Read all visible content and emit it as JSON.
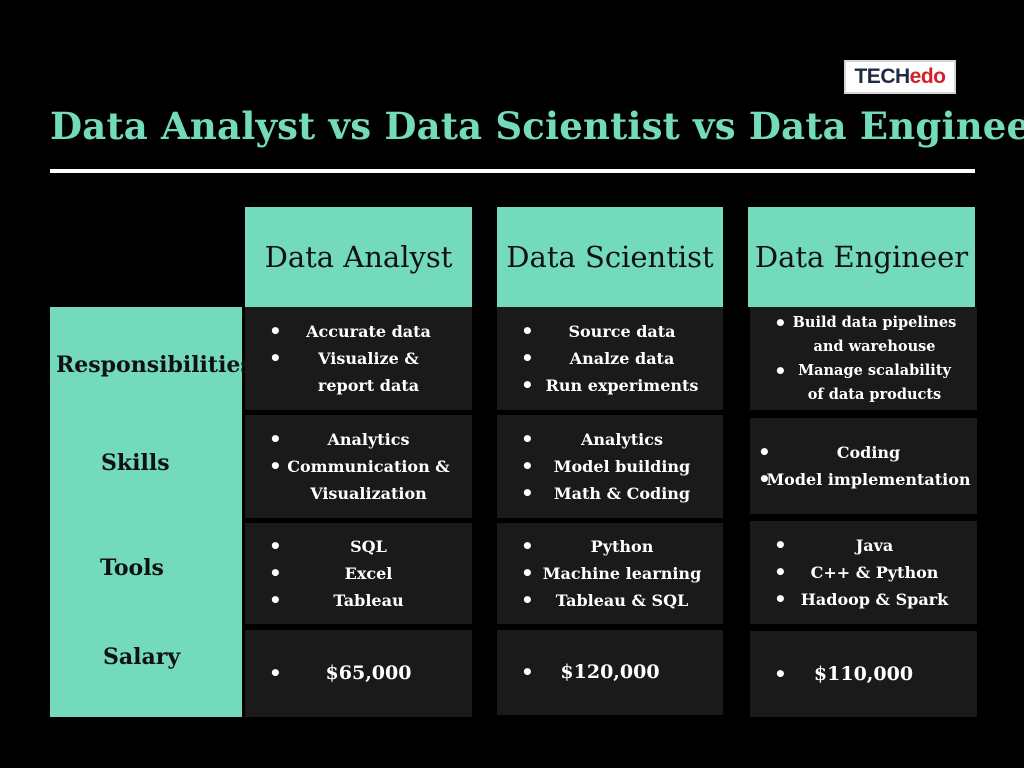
{
  "logo": {
    "part1": "TECH",
    "part2": "edo"
  },
  "title": "Data Analyst vs Data Scientist vs Data Engineer",
  "columns": [
    "Data Analyst",
    "Data Scientist",
    "Data Engineer"
  ],
  "rows": [
    "Responsibilities",
    "Skills",
    "Tools",
    "Salary"
  ],
  "cells": {
    "analyst": {
      "responsibilities": [
        [
          "Accurate data"
        ],
        [
          "Visualize &",
          "report data"
        ]
      ],
      "skills": [
        [
          "Analytics"
        ],
        [
          "Communication &",
          "Visualization"
        ]
      ],
      "tools": [
        [
          "SQL"
        ],
        [
          "Excel"
        ],
        [
          "Tableau"
        ]
      ],
      "salary": "$65,000"
    },
    "scientist": {
      "responsibilities": [
        [
          "Source data"
        ],
        [
          "Analze data"
        ],
        [
          "Run experiments"
        ]
      ],
      "skills": [
        [
          "Analytics"
        ],
        [
          "Model building"
        ],
        [
          "Math & Coding"
        ]
      ],
      "tools": [
        [
          "Python"
        ],
        [
          "Machine learning"
        ],
        [
          "Tableau & SQL"
        ]
      ],
      "salary": "$120,000"
    },
    "engineer": {
      "responsibilities": [
        [
          "Build data pipelines",
          "and warehouse"
        ],
        [
          "Manage scalability",
          "of data products"
        ]
      ],
      "skills": [
        [
          "Coding"
        ],
        [
          "Model implementation"
        ]
      ],
      "tools": [
        [
          "Java"
        ],
        [
          "C++ & Python"
        ],
        [
          "Hadoop & Spark"
        ]
      ],
      "salary": "$110,000"
    }
  },
  "colors": {
    "accent": "#73dbbb",
    "background": "#000000",
    "cell": "#1a1a1a"
  }
}
